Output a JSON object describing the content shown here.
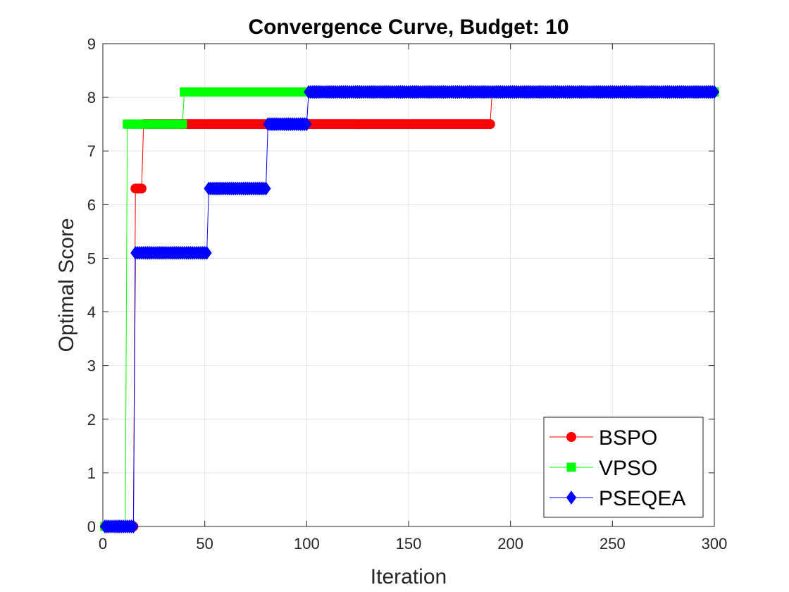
{
  "chart_data": {
    "type": "line",
    "title": "Convergence Curve, Budget: 10",
    "xlabel": "Iteration",
    "ylabel": "Optimal Score",
    "xlim": [
      0,
      300
    ],
    "ylim": [
      0,
      9
    ],
    "xticks": [
      0,
      50,
      100,
      150,
      200,
      250,
      300
    ],
    "yticks": [
      0,
      1,
      2,
      3,
      4,
      5,
      6,
      7,
      8,
      9
    ],
    "grid": true,
    "legend_position": "bottom-right",
    "series": [
      {
        "name": "BSPO",
        "color": "#ff0000",
        "marker": "circle",
        "steps": [
          [
            1,
            0
          ],
          [
            16,
            6.3
          ],
          [
            20,
            7.5
          ],
          [
            191,
            8.1
          ],
          [
            300,
            8.1
          ]
        ]
      },
      {
        "name": "VPSO",
        "color": "#00ff00",
        "marker": "square",
        "steps": [
          [
            1,
            0
          ],
          [
            12,
            7.5
          ],
          [
            40,
            8.1
          ],
          [
            300,
            8.1
          ]
        ]
      },
      {
        "name": "PSEQEA",
        "color": "#0000ff",
        "marker": "diamond",
        "steps": [
          [
            1,
            0
          ],
          [
            16,
            5.1
          ],
          [
            52,
            6.3
          ],
          [
            81,
            7.5
          ],
          [
            101,
            8.1
          ],
          [
            300,
            8.1
          ]
        ]
      }
    ]
  }
}
